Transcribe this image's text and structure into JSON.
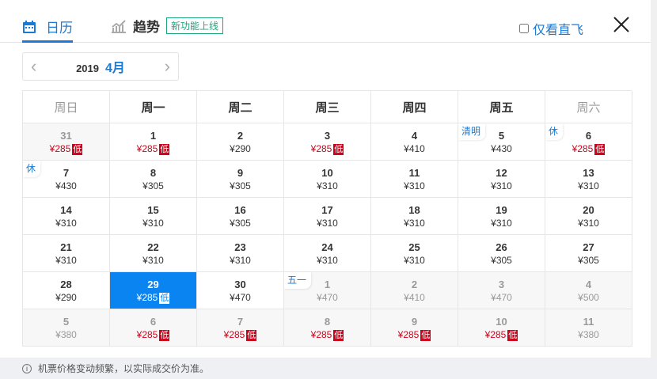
{
  "tabs": [
    {
      "label": "日历",
      "icon": "calendar-icon",
      "active": true
    },
    {
      "label": "趋势",
      "icon": "trend-chart-icon",
      "badge": "新功能上线"
    }
  ],
  "direct_only": {
    "label": "仅看直飞",
    "checked": false
  },
  "month_nav": {
    "year": "2019",
    "month": "4月"
  },
  "weekdays": [
    "周日",
    "周一",
    "周二",
    "周三",
    "周四",
    "周五",
    "周六"
  ],
  "low_label": "低",
  "colors": {
    "accent": "#1a7ad6",
    "selected": "#0a84f0",
    "low": "#d0021b",
    "badge": "#1aa57a"
  },
  "days": [
    {
      "day": "31",
      "price": "¥285",
      "low": true,
      "other": true
    },
    {
      "day": "1",
      "price": "¥285",
      "low": true
    },
    {
      "day": "2",
      "price": "¥290"
    },
    {
      "day": "3",
      "price": "¥285",
      "low": true
    },
    {
      "day": "4",
      "price": "¥410"
    },
    {
      "day": "5",
      "price": "¥430",
      "holiday": "清明"
    },
    {
      "day": "6",
      "price": "¥285",
      "low": true,
      "holiday": "休"
    },
    {
      "day": "7",
      "price": "¥430",
      "holiday": "休"
    },
    {
      "day": "8",
      "price": "¥305"
    },
    {
      "day": "9",
      "price": "¥305"
    },
    {
      "day": "10",
      "price": "¥310"
    },
    {
      "day": "11",
      "price": "¥310"
    },
    {
      "day": "12",
      "price": "¥310"
    },
    {
      "day": "13",
      "price": "¥310"
    },
    {
      "day": "14",
      "price": "¥310"
    },
    {
      "day": "15",
      "price": "¥310"
    },
    {
      "day": "16",
      "price": "¥305"
    },
    {
      "day": "17",
      "price": "¥310"
    },
    {
      "day": "18",
      "price": "¥310"
    },
    {
      "day": "19",
      "price": "¥310"
    },
    {
      "day": "20",
      "price": "¥310"
    },
    {
      "day": "21",
      "price": "¥310"
    },
    {
      "day": "22",
      "price": "¥310"
    },
    {
      "day": "23",
      "price": "¥310"
    },
    {
      "day": "24",
      "price": "¥310"
    },
    {
      "day": "25",
      "price": "¥310"
    },
    {
      "day": "26",
      "price": "¥305"
    },
    {
      "day": "27",
      "price": "¥305"
    },
    {
      "day": "28",
      "price": "¥290"
    },
    {
      "day": "29",
      "price": "¥285",
      "low": true,
      "selected": true
    },
    {
      "day": "30",
      "price": "¥470"
    },
    {
      "day": "1",
      "price": "¥470",
      "other": true,
      "holiday": "五一"
    },
    {
      "day": "2",
      "price": "¥410",
      "other": true
    },
    {
      "day": "3",
      "price": "¥470",
      "other": true
    },
    {
      "day": "4",
      "price": "¥500",
      "other": true
    },
    {
      "day": "5",
      "price": "¥380",
      "other": true
    },
    {
      "day": "6",
      "price": "¥285",
      "low": true,
      "other": true
    },
    {
      "day": "7",
      "price": "¥285",
      "low": true,
      "other": true
    },
    {
      "day": "8",
      "price": "¥285",
      "low": true,
      "other": true
    },
    {
      "day": "9",
      "price": "¥285",
      "low": true,
      "other": true
    },
    {
      "day": "10",
      "price": "¥285",
      "low": true,
      "other": true
    },
    {
      "day": "11",
      "price": "¥380",
      "other": true
    }
  ],
  "footer": {
    "notice": "机票价格变动频繁，以实际成交价为准。",
    "icon": "info-icon"
  }
}
